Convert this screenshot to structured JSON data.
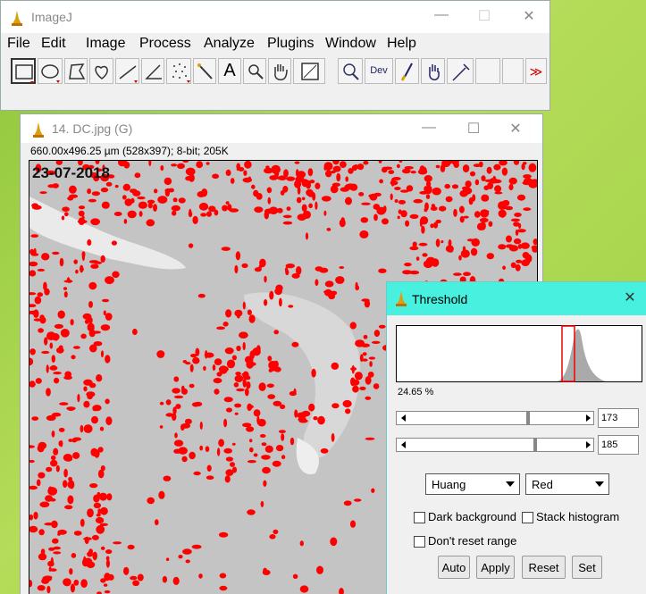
{
  "imagej": {
    "title": "ImageJ",
    "menu": [
      "File",
      "Edit",
      "Image",
      "Process",
      "Analyze",
      "Plugins",
      "Window",
      "Help"
    ],
    "text_tool": "A",
    "dev_tool": "Dev",
    "overflow": "≫"
  },
  "image_window": {
    "title": "14. DC.jpg (G)",
    "info": "660.00x496.25 µm (528x397); 8-bit; 205K",
    "stamp": "23-07-2018"
  },
  "threshold": {
    "title": "Threshold",
    "percent": "24.65 %",
    "min": 173,
    "max": 185,
    "method": "Huang",
    "mode": "Red",
    "checkboxes": [
      "Dark background",
      "Stack histogram",
      "Don't reset range"
    ],
    "buttons": [
      "Auto",
      "Apply",
      "Reset",
      "Set"
    ]
  }
}
